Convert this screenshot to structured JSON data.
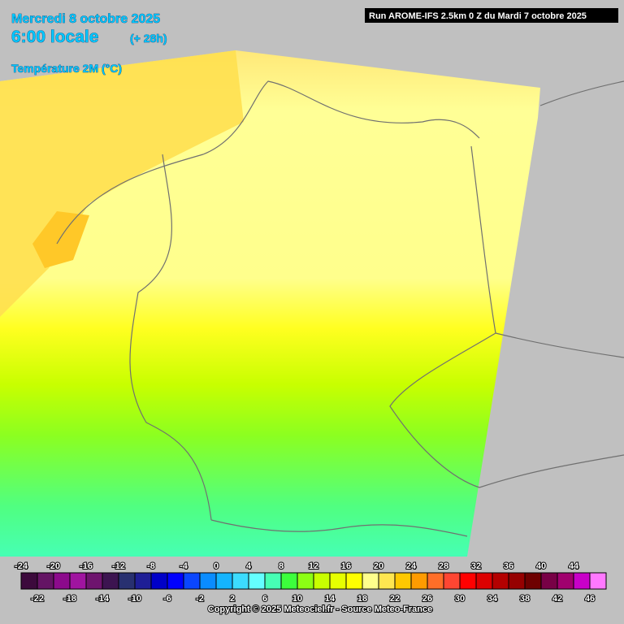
{
  "header": {
    "date": "Mercredi 8 octobre 2025",
    "time": "6:00 locale",
    "lead": "(+ 28h)",
    "parameter": "Température 2M (°C)",
    "run": "Run AROME-IFS 2.5km 0 Z du Mardi 7 octobre 2025"
  },
  "legend": {
    "values": [
      -24,
      -22,
      -20,
      -18,
      -16,
      -14,
      -12,
      -10,
      -8,
      -6,
      -4,
      -2,
      0,
      2,
      4,
      6,
      8,
      10,
      12,
      14,
      16,
      18,
      20,
      22,
      24,
      26,
      28,
      30,
      32,
      34,
      36,
      38,
      40,
      42,
      44,
      46
    ],
    "colors": [
      "#3c0a3c",
      "#641464",
      "#8c0a8c",
      "#a014a0",
      "#6e146e",
      "#3c1450",
      "#283070",
      "#1e1e96",
      "#0000c8",
      "#0000ff",
      "#0a46ff",
      "#0a8cff",
      "#14b4ff",
      "#3cdcff",
      "#64ffff",
      "#46ffb4",
      "#3cff3c",
      "#8cff14",
      "#c8ff00",
      "#e6ff00",
      "#ffff00",
      "#ffff8c",
      "#ffe650",
      "#ffc800",
      "#ff9b00",
      "#ff6e28",
      "#ff4632",
      "#ff0000",
      "#dc0000",
      "#b40000",
      "#960000",
      "#6e0000",
      "#780046",
      "#a0006e",
      "#c800c8",
      "#ff78ff"
    ]
  },
  "footer": {
    "copyright": "Copyright © 2025 Meteociel.fr - Source Meteo-France"
  }
}
